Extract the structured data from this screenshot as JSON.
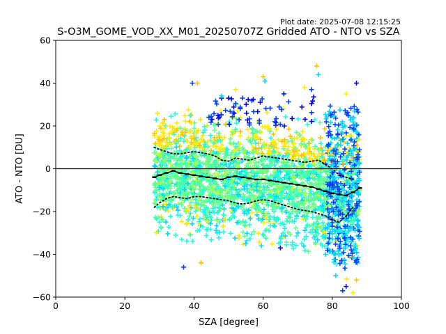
{
  "chart_data": {
    "type": "scatter",
    "title": "S-O3M_GOME_VOD_XX_M01_20250707Z Gridded ATO - NTO vs SZA",
    "subtitle": "Plot date: 2025-07-08 12:15:25",
    "xlabel": "SZA [degree]",
    "ylabel": "ATO - NTO [DU]",
    "xlim": [
      0,
      100
    ],
    "ylim": [
      -60,
      60
    ],
    "xticks": [
      0,
      20,
      40,
      60,
      80,
      100
    ],
    "yticks": [
      -60,
      -40,
      -20,
      0,
      20,
      40,
      60
    ],
    "grid": false,
    "zero_line": 0,
    "marker": "+",
    "point_colors": [
      "#00d5ff",
      "#60ff90",
      "#ffea00",
      "#1fffe0",
      "#0040ff",
      "#0000e0",
      "#ffc000",
      "#b0ff40"
    ],
    "spread_envelope": {
      "x": [
        28.5,
        35,
        40,
        45,
        50,
        55,
        60,
        65,
        70,
        75,
        80,
        85,
        88
      ],
      "upper": [
        28,
        27,
        29,
        30,
        32,
        31,
        33,
        30,
        29,
        27,
        26,
        30,
        30
      ],
      "lower": [
        -32,
        -33,
        -36,
        -34,
        -33,
        -36,
        -37,
        -36,
        -38,
        -40,
        -45,
        -55,
        -45
      ]
    },
    "outliers": [
      {
        "x": 39.5,
        "y": 40
      },
      {
        "x": 41,
        "y": 40
      },
      {
        "x": 48,
        "y": 34
      },
      {
        "x": 50,
        "y": 33
      },
      {
        "x": 52,
        "y": 37
      },
      {
        "x": 54,
        "y": 33
      },
      {
        "x": 60,
        "y": 43
      },
      {
        "x": 60.5,
        "y": 41
      },
      {
        "x": 66,
        "y": 35
      },
      {
        "x": 72,
        "y": 38
      },
      {
        "x": 74,
        "y": 37
      },
      {
        "x": 75.5,
        "y": 48
      },
      {
        "x": 76,
        "y": 44
      },
      {
        "x": 87,
        "y": 40
      },
      {
        "x": 84,
        "y": 35
      },
      {
        "x": 37,
        "y": -46
      },
      {
        "x": 42,
        "y": -44
      },
      {
        "x": 81,
        "y": -50
      },
      {
        "x": 84,
        "y": -55
      },
      {
        "x": 86,
        "y": -58
      },
      {
        "x": 83,
        "y": -57
      },
      {
        "x": 87,
        "y": -52
      },
      {
        "x": 55,
        "y": -35
      },
      {
        "x": 65,
        "y": -37
      }
    ],
    "series": [
      {
        "name": "",
        "style": "solid-markers",
        "color": "#000000",
        "x": [
          28.5,
          30,
          32,
          34,
          36,
          38,
          40,
          42,
          44,
          46,
          48,
          50,
          52,
          54,
          56,
          58,
          60,
          62,
          64,
          66,
          68,
          70,
          72,
          74,
          76,
          78,
          80,
          82,
          84,
          86,
          88
        ],
        "y": [
          -4,
          -3,
          -2,
          -1,
          -2,
          -2.5,
          -3,
          -3.5,
          -4,
          -4.5,
          -5,
          -4,
          -3.5,
          -4,
          -4.5,
          -5,
          -5,
          -5.5,
          -6,
          -6.5,
          -7,
          -7.5,
          -8,
          -8.5,
          -9.5,
          -10.5,
          -11.5,
          -12,
          -12.5,
          -11,
          -9
        ]
      },
      {
        "name": "",
        "style": "dotted",
        "color": "#000000",
        "x": [
          28.5,
          30,
          32,
          34,
          36,
          38,
          40,
          42,
          44,
          46,
          48,
          50,
          52,
          54,
          56,
          58,
          60,
          62,
          64,
          66,
          68,
          70,
          72,
          74,
          76,
          78,
          80,
          82,
          84,
          86
        ],
        "y": [
          10,
          9,
          8,
          7,
          7,
          7.5,
          8,
          7.5,
          7,
          6,
          4,
          3.5,
          5,
          4.5,
          4,
          5,
          6,
          5.5,
          5,
          4.5,
          4,
          3.5,
          3,
          3.5,
          4,
          2,
          0,
          -3,
          -4,
          -5
        ]
      },
      {
        "name": "",
        "style": "dotted",
        "color": "#000000",
        "x": [
          28.5,
          30,
          32,
          34,
          36,
          38,
          40,
          42,
          44,
          46,
          48,
          50,
          52,
          54,
          56,
          58,
          60,
          62,
          64,
          66,
          68,
          70,
          72,
          74,
          76,
          78,
          80,
          82,
          84,
          86
        ],
        "y": [
          -18,
          -16,
          -14,
          -13,
          -13.5,
          -14,
          -13,
          -13,
          -13.5,
          -14,
          -14.5,
          -15,
          -16,
          -16.5,
          -16,
          -15,
          -14.5,
          -15,
          -16,
          -17,
          -18,
          -19,
          -19.5,
          -20,
          -21,
          -22,
          -24,
          -25,
          -22,
          -18
        ]
      }
    ]
  }
}
